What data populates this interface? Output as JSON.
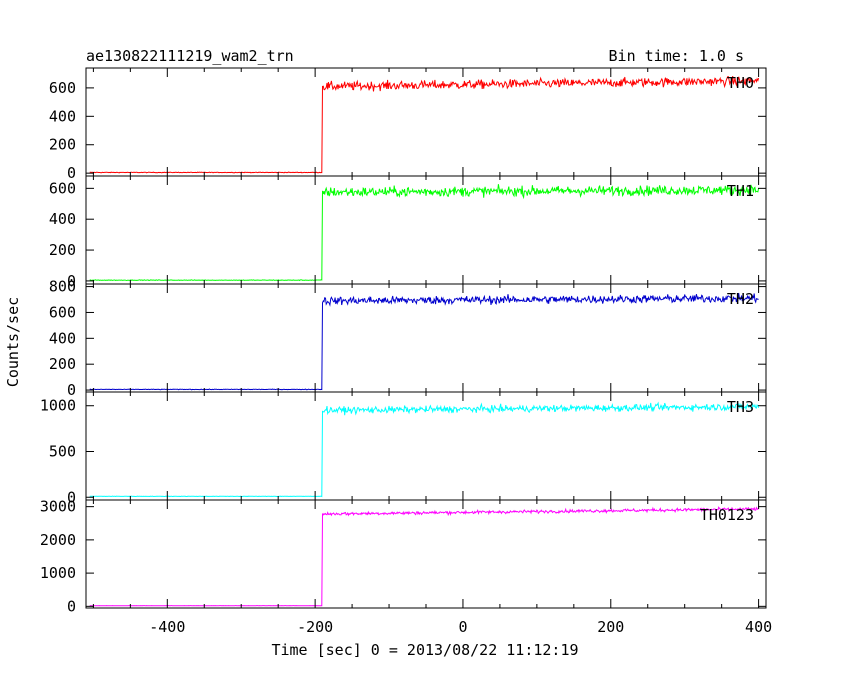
{
  "chart_data": {
    "type": "line",
    "title": "ae130822111219_wam2_trn",
    "bin_time_label": "Bin time: 1.0 s",
    "xlabel": "Time [sec] 0 = 2013/08/22 11:12:19",
    "ylabel": "Counts/sec",
    "xlim": [
      -510,
      410
    ],
    "xticks": [
      -400,
      -200,
      0,
      200,
      400
    ],
    "step_time": -190,
    "grid": false,
    "panels": [
      {
        "name": "TH0",
        "color": "#ff0000",
        "ylim": [
          -20,
          740
        ],
        "yticks": [
          0,
          200,
          400,
          600
        ],
        "pre_level": 5,
        "post_start": 610,
        "post_end": 650,
        "noise": 30
      },
      {
        "name": "TH1",
        "color": "#00ff00",
        "ylim": [
          -20,
          680
        ],
        "yticks": [
          0,
          200,
          400,
          600
        ],
        "pre_level": 5,
        "post_start": 575,
        "post_end": 590,
        "noise": 30
      },
      {
        "name": "TH2",
        "color": "#0000cd",
        "ylim": [
          -15,
          820
        ],
        "yticks": [
          0,
          200,
          400,
          600,
          800
        ],
        "pre_level": 5,
        "post_start": 690,
        "post_end": 710,
        "noise": 30
      },
      {
        "name": "TH3",
        "color": "#00ffff",
        "ylim": [
          -30,
          1150
        ],
        "yticks": [
          0,
          500,
          1000
        ],
        "pre_level": 10,
        "post_start": 950,
        "post_end": 990,
        "noise": 35
      },
      {
        "name": "TH0123",
        "color": "#ff00ff",
        "ylim": [
          -50,
          3200
        ],
        "yticks": [
          0,
          1000,
          2000,
          3000
        ],
        "pre_level": 20,
        "post_start": 2780,
        "post_end": 2930,
        "noise": 45
      }
    ]
  }
}
